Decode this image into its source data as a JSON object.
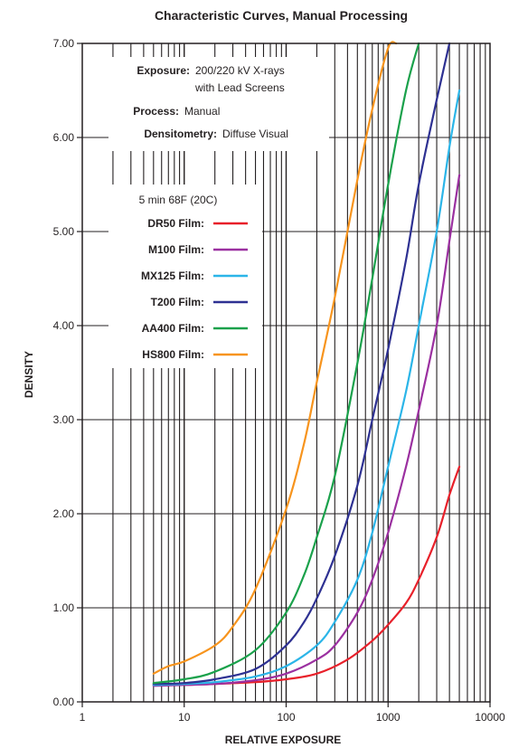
{
  "chart_data": {
    "type": "line",
    "title": "Characteristic Curves, Manual Processing",
    "xlabel": "RELATIVE EXPOSURE",
    "ylabel": "DENSITY",
    "x_scale": "log",
    "xlim": [
      1,
      10000
    ],
    "ylim": [
      0,
      7
    ],
    "x_ticks": [
      "1",
      "10",
      "100",
      "1000",
      "10000"
    ],
    "y_ticks": [
      "0.00",
      "1.00",
      "2.00",
      "3.00",
      "4.00",
      "5.00",
      "6.00",
      "7.00"
    ],
    "grid": true,
    "legend_placement": "top-left",
    "info": [
      {
        "label": "Exposure:",
        "value": "200/220 kV X-rays",
        "value2": "with Lead Screens"
      },
      {
        "label": "Process:",
        "value": "Manual"
      },
      {
        "label": "Densitometry:",
        "value": "Diffuse Visual"
      }
    ],
    "legend_header": "5 min 68F (20C)",
    "series": [
      {
        "name": "DR50 Film:",
        "color": "#e8202a",
        "x": [
          5,
          10,
          20,
          50,
          100,
          200,
          400,
          700,
          1000,
          1500,
          2000,
          3000,
          4000,
          5000
        ],
        "y": [
          0.18,
          0.18,
          0.19,
          0.21,
          0.24,
          0.3,
          0.45,
          0.65,
          0.82,
          1.05,
          1.3,
          1.75,
          2.2,
          2.5
        ]
      },
      {
        "name": "M100 Film:",
        "color": "#9b30a0",
        "x": [
          5,
          10,
          20,
          50,
          100,
          200,
          300,
          500,
          700,
          1000,
          1500,
          2000,
          3000,
          4000,
          5000
        ],
        "y": [
          0.17,
          0.18,
          0.19,
          0.23,
          0.3,
          0.45,
          0.6,
          0.95,
          1.3,
          1.8,
          2.5,
          3.1,
          4.0,
          4.9,
          5.6
        ]
      },
      {
        "name": "MX125 Film:",
        "color": "#2bb5e8",
        "x": [
          5,
          10,
          20,
          50,
          100,
          200,
          300,
          500,
          700,
          1000,
          1500,
          2000,
          3000,
          4000,
          5000
        ],
        "y": [
          0.18,
          0.19,
          0.21,
          0.27,
          0.38,
          0.6,
          0.85,
          1.3,
          1.8,
          2.5,
          3.3,
          4.0,
          5.0,
          5.9,
          6.5
        ]
      },
      {
        "name": "T200 Film:",
        "color": "#2e3192",
        "x": [
          5,
          10,
          20,
          50,
          100,
          150,
          200,
          300,
          500,
          700,
          1000,
          1500,
          2000,
          3000,
          4000
        ],
        "y": [
          0.19,
          0.2,
          0.24,
          0.35,
          0.6,
          0.85,
          1.1,
          1.55,
          2.3,
          3.0,
          3.75,
          4.7,
          5.5,
          6.4,
          7.0
        ]
      },
      {
        "name": "AA400 Film:",
        "color": "#1aa14b",
        "x": [
          5,
          10,
          20,
          50,
          100,
          150,
          200,
          300,
          500,
          700,
          1000,
          1500,
          2000
        ],
        "y": [
          0.2,
          0.24,
          0.32,
          0.55,
          0.95,
          1.35,
          1.75,
          2.4,
          3.6,
          4.5,
          5.5,
          6.5,
          7.0
        ]
      },
      {
        "name": "HS800 Film:",
        "color": "#f7941d",
        "x": [
          5,
          7,
          10,
          20,
          30,
          50,
          100,
          150,
          200,
          300,
          500,
          700,
          1000,
          1200
        ],
        "y": [
          0.3,
          0.38,
          0.43,
          0.6,
          0.8,
          1.2,
          2.05,
          2.75,
          3.4,
          4.3,
          5.55,
          6.3,
          6.95,
          7.0
        ]
      }
    ]
  }
}
